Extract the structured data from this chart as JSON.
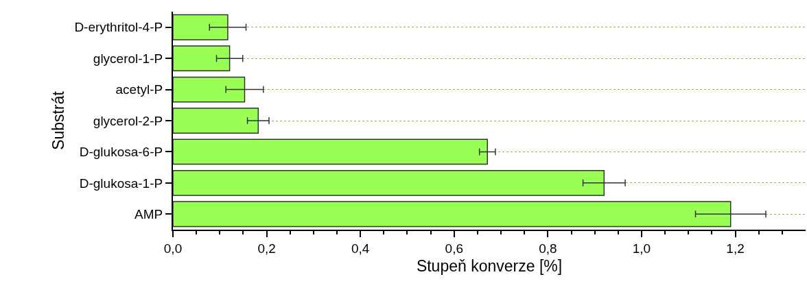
{
  "chart_data": {
    "type": "bar",
    "orientation": "horizontal",
    "xlabel": "Stupeň konverze [%]",
    "ylabel": "Substrát",
    "categories": [
      "D-erythritol-4-P",
      "glycerol-1-P",
      "acetyl-P",
      "glycerol-2-P",
      "D-glukosa-6-P",
      "D-glukosa-1-P",
      "AMP"
    ],
    "values": [
      0.117,
      0.121,
      0.153,
      0.182,
      0.671,
      0.92,
      1.19
    ],
    "errors": [
      0.039,
      0.028,
      0.04,
      0.023,
      0.017,
      0.045,
      0.075
    ],
    "color": "#99ff55",
    "xlim": [
      0,
      1.35
    ],
    "xticks": [
      {
        "value": 0,
        "label": "0,0"
      },
      {
        "value": 0.05,
        "label": null
      },
      {
        "value": 0.1,
        "label": null
      },
      {
        "value": 0.15,
        "label": null
      },
      {
        "value": 0.2,
        "label": "0,2"
      },
      {
        "value": 0.25,
        "label": null
      },
      {
        "value": 0.3,
        "label": null
      },
      {
        "value": 0.35,
        "label": null
      },
      {
        "value": 0.4,
        "label": "0,4"
      },
      {
        "value": 0.45,
        "label": null
      },
      {
        "value": 0.5,
        "label": null
      },
      {
        "value": 0.55,
        "label": null
      },
      {
        "value": 0.6,
        "label": "0,6"
      },
      {
        "value": 0.65,
        "label": null
      },
      {
        "value": 0.7,
        "label": null
      },
      {
        "value": 0.75,
        "label": null
      },
      {
        "value": 0.8,
        "label": "0,8"
      },
      {
        "value": 0.85,
        "label": null
      },
      {
        "value": 0.9,
        "label": null
      },
      {
        "value": 0.95,
        "label": null
      },
      {
        "value": 1.0,
        "label": "1,0"
      },
      {
        "value": 1.05,
        "label": null
      },
      {
        "value": 1.1,
        "label": null
      },
      {
        "value": 1.15,
        "label": null
      },
      {
        "value": 1.2,
        "label": "1,2"
      },
      {
        "value": 1.25,
        "label": null
      },
      {
        "value": 1.3,
        "label": null
      }
    ],
    "grid": "y",
    "legend": false
  }
}
